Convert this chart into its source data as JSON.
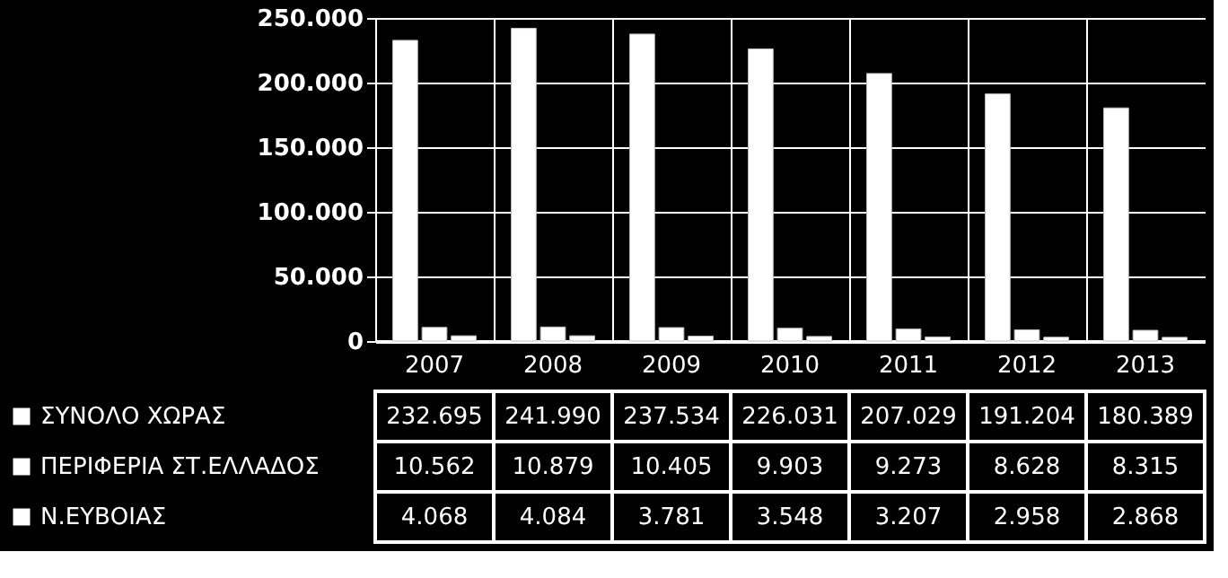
{
  "chart_data": {
    "type": "bar",
    "categories": [
      "2007",
      "2008",
      "2009",
      "2010",
      "2011",
      "2012",
      "2013"
    ],
    "series": [
      {
        "name": "ΣΥΝΟΛΟ ΧΩΡΑΣ",
        "color": "#ffffff",
        "values": [
          232695,
          241990,
          237534,
          226031,
          207029,
          191204,
          180389
        ],
        "value_labels": [
          "232.695",
          "241.990",
          "237.534",
          "226.031",
          "207.029",
          "191.204",
          "180.389"
        ]
      },
      {
        "name": "ΠΕΡΙΦΕΡΙΑ ΣΤ.ΕΛΛΑΔΟΣ",
        "color": "#ffffff",
        "values": [
          10562,
          10879,
          10405,
          9903,
          9273,
          8628,
          8315
        ],
        "value_labels": [
          "10.562",
          "10.879",
          "10.405",
          "9.903",
          "9.273",
          "8.628",
          "8.315"
        ]
      },
      {
        "name": "Ν.ΕΥΒΟΙΑΣ",
        "color": "#ffffff",
        "values": [
          4068,
          4084,
          3781,
          3548,
          3207,
          2958,
          2868
        ],
        "value_labels": [
          "4.068",
          "4.084",
          "3.781",
          "3.548",
          "3.207",
          "2.958",
          "2.868"
        ]
      }
    ],
    "ylim": [
      0,
      250000
    ],
    "yticks": [
      0,
      {
        "value": 50000,
        "label": "50.000"
      },
      {
        "value": 100000,
        "label": "100.000"
      },
      {
        "value": 150000,
        "label": "150.000"
      },
      {
        "value": 200000,
        "label": "200.000"
      },
      {
        "value": 250000,
        "label": "250.000"
      }
    ],
    "grid": true,
    "legend": "bottom"
  }
}
